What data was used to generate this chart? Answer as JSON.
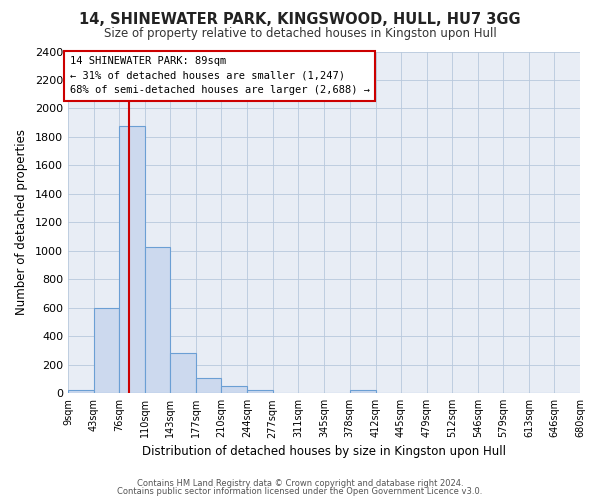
{
  "title": "14, SHINEWATER PARK, KINGSWOOD, HULL, HU7 3GG",
  "subtitle": "Size of property relative to detached houses in Kingston upon Hull",
  "xlabel": "Distribution of detached houses by size in Kingston upon Hull",
  "ylabel": "Number of detached properties",
  "bin_edges": [
    9,
    43,
    76,
    110,
    143,
    177,
    210,
    244,
    277,
    311,
    345,
    378,
    412,
    445,
    479,
    512,
    546,
    579,
    613,
    646,
    680
  ],
  "bar_heights": [
    20,
    600,
    1880,
    1030,
    280,
    110,
    50,
    25,
    0,
    0,
    0,
    20,
    0,
    0,
    0,
    0,
    0,
    0,
    0,
    0
  ],
  "bar_color": "#ccd9ee",
  "bar_edge_color": "#6b9fd4",
  "vline_x": 89,
  "vline_color": "#cc0000",
  "ylim": [
    0,
    2400
  ],
  "yticks": [
    0,
    200,
    400,
    600,
    800,
    1000,
    1200,
    1400,
    1600,
    1800,
    2000,
    2200,
    2400
  ],
  "annotation_title": "14 SHINEWATER PARK: 89sqm",
  "annotation_line1": "← 31% of detached houses are smaller (1,247)",
  "annotation_line2": "68% of semi-detached houses are larger (2,688) →",
  "annotation_box_color": "#ffffff",
  "annotation_box_edge": "#cc0000",
  "footer_line1": "Contains HM Land Registry data © Crown copyright and database right 2024.",
  "footer_line2": "Contains public sector information licensed under the Open Government Licence v3.0.",
  "fig_bg_color": "#ffffff",
  "plot_bg_color": "#e8edf5"
}
